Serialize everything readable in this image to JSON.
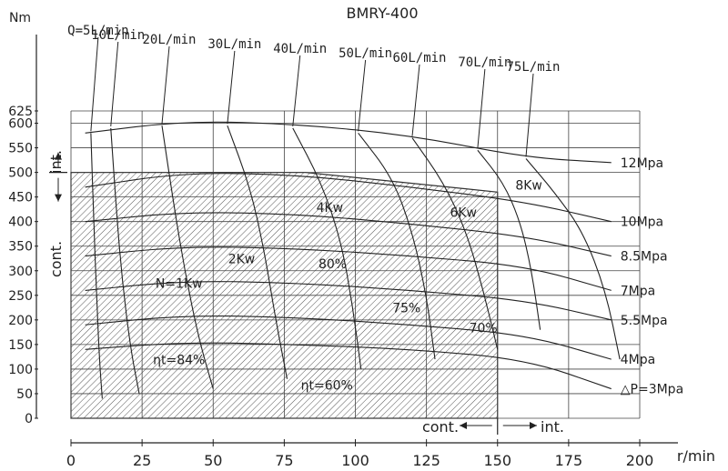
{
  "chart_data": {
    "type": "line",
    "title": "BMRY-400",
    "xlabel": "r/min",
    "ylabel": "Nm",
    "xlim": [
      0,
      200
    ],
    "ylim": [
      0,
      625
    ],
    "x_ticks": [
      0,
      25,
      50,
      75,
      100,
      125,
      150,
      175,
      200
    ],
    "y_ticks": [
      0,
      50,
      100,
      150,
      200,
      250,
      300,
      350,
      400,
      450,
      500,
      550,
      600,
      625
    ],
    "grid": true,
    "continuous_region": {
      "x_max": 150,
      "y_max": 500,
      "y_max_at_x150": 460
    },
    "labels": {
      "cont_y": "cont.",
      "int_y": "int.",
      "cont_x": "cont.",
      "int_x": "int."
    },
    "flow_lines": [
      {
        "label": "Q=5L/min",
        "x": [
          7,
          8,
          9,
          10,
          11
        ],
        "y": [
          580,
          400,
          250,
          120,
          40
        ]
      },
      {
        "label": "10L/min",
        "x": [
          14,
          16,
          18,
          21,
          24
        ],
        "y": [
          590,
          420,
          280,
          140,
          50
        ]
      },
      {
        "label": "20L/min",
        "x": [
          32,
          36,
          40,
          45,
          50
        ],
        "y": [
          595,
          440,
          300,
          160,
          60
        ]
      },
      {
        "label": "30L/min",
        "x": [
          55,
          63,
          68,
          72,
          76
        ],
        "y": [
          595,
          470,
          340,
          200,
          80
        ]
      },
      {
        "label": "40L/min",
        "x": [
          78,
          88,
          95,
          99,
          102
        ],
        "y": [
          590,
          480,
          360,
          230,
          100
        ]
      },
      {
        "label": "50L/min",
        "x": [
          101,
          113,
          120,
          125,
          128
        ],
        "y": [
          580,
          490,
          380,
          250,
          120
        ]
      },
      {
        "label": "60L/min",
        "x": [
          120,
          131,
          139,
          145,
          150
        ],
        "y": [
          570,
          480,
          380,
          260,
          140
        ]
      },
      {
        "label": "70L/min",
        "x": [
          143,
          152,
          158,
          162,
          165
        ],
        "y": [
          545,
          480,
          400,
          300,
          180
        ]
      },
      {
        "label": "75L/min",
        "x": [
          160,
          170,
          180,
          188,
          193
        ],
        "y": [
          528,
          460,
          380,
          260,
          120
        ]
      }
    ],
    "pressure_lines": [
      {
        "label": "12Mpa",
        "x": [
          5,
          40,
          80,
          120,
          160,
          190
        ],
        "y": [
          580,
          605,
          598,
          575,
          530,
          520
        ]
      },
      {
        "label": "10Mpa",
        "x": [
          5,
          40,
          80,
          120,
          160,
          190
        ],
        "y": [
          470,
          500,
          495,
          470,
          440,
          400
        ]
      },
      {
        "label": "8.5Mpa",
        "x": [
          5,
          40,
          80,
          120,
          160,
          190
        ],
        "y": [
          400,
          420,
          415,
          395,
          370,
          330
        ]
      },
      {
        "label": "7Mpa",
        "x": [
          5,
          40,
          80,
          120,
          160,
          190
        ],
        "y": [
          330,
          350,
          345,
          330,
          310,
          260
        ]
      },
      {
        "label": "5.5Mpa",
        "x": [
          5,
          40,
          80,
          120,
          160,
          190
        ],
        "y": [
          260,
          280,
          275,
          260,
          240,
          200
        ]
      },
      {
        "label": "4Mpa",
        "x": [
          5,
          40,
          80,
          120,
          160,
          190
        ],
        "y": [
          190,
          210,
          205,
          190,
          170,
          120
        ]
      },
      {
        "label": "△P=3Mpa",
        "x": [
          5,
          40,
          80,
          120,
          160,
          190
        ],
        "y": [
          140,
          155,
          150,
          140,
          120,
          60
        ]
      }
    ],
    "annotations": [
      {
        "text": "N=1Kw",
        "x": 38,
        "y": 265
      },
      {
        "text": "2Kw",
        "x": 60,
        "y": 315
      },
      {
        "text": "4Kw",
        "x": 91,
        "y": 420
      },
      {
        "text": "6Kw",
        "x": 138,
        "y": 410
      },
      {
        "text": "8Kw",
        "x": 161,
        "y": 465
      },
      {
        "text": "80%",
        "x": 92,
        "y": 305
      },
      {
        "text": "75%",
        "x": 118,
        "y": 215
      },
      {
        "text": "70%",
        "x": 145,
        "y": 175
      },
      {
        "text": "ηt=84%",
        "x": 38,
        "y": 110
      },
      {
        "text": "ηt=60%",
        "x": 90,
        "y": 58
      }
    ]
  }
}
